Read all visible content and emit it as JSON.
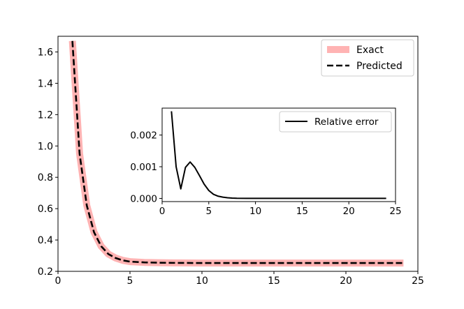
{
  "chart_data": [
    {
      "type": "line",
      "title": "",
      "xlabel": "",
      "ylabel": "",
      "xlim": [
        0,
        25
      ],
      "ylim": [
        0.2,
        1.7
      ],
      "xticks": [
        0,
        5,
        10,
        15,
        20,
        25
      ],
      "yticks": [
        0.2,
        0.4,
        0.6,
        0.8,
        1.0,
        1.2,
        1.4,
        1.6
      ],
      "xtick_labels": [
        "0",
        "5",
        "10",
        "15",
        "20",
        "25"
      ],
      "ytick_labels": [
        "0.2",
        "0.4",
        "0.6",
        "0.8",
        "1.0",
        "1.2",
        "1.4",
        "1.6"
      ],
      "grid": false,
      "legend_position": "top-right",
      "series": [
        {
          "name": "Exact",
          "style": "thick-solid",
          "color": "#ffb3b3",
          "x": [
            1.0,
            1.5,
            2.0,
            2.5,
            3.0,
            3.5,
            4.0,
            4.5,
            5.0,
            6.0,
            7.0,
            8.0,
            10.0,
            12.0,
            15.0,
            18.0,
            21.0,
            24.0
          ],
          "y": [
            1.67,
            0.95,
            0.62,
            0.45,
            0.36,
            0.31,
            0.285,
            0.27,
            0.262,
            0.257,
            0.255,
            0.254,
            0.253,
            0.253,
            0.253,
            0.253,
            0.253,
            0.253
          ]
        },
        {
          "name": "Predicted",
          "style": "dashed",
          "color": "#000000",
          "x": [
            1.0,
            1.5,
            2.0,
            2.5,
            3.0,
            3.5,
            4.0,
            4.5,
            5.0,
            6.0,
            7.0,
            8.0,
            10.0,
            12.0,
            15.0,
            18.0,
            21.0,
            24.0
          ],
          "y": [
            1.67,
            0.95,
            0.62,
            0.45,
            0.36,
            0.31,
            0.285,
            0.27,
            0.262,
            0.257,
            0.255,
            0.254,
            0.253,
            0.253,
            0.253,
            0.253,
            0.253,
            0.253
          ]
        }
      ]
    },
    {
      "type": "line",
      "title": "",
      "xlabel": "",
      "ylabel": "",
      "xlim": [
        0,
        25
      ],
      "ylim": [
        -0.0001,
        0.00285
      ],
      "xticks": [
        0,
        5,
        10,
        15,
        20,
        25
      ],
      "yticks": [
        0.0,
        0.001,
        0.002
      ],
      "xtick_labels": [
        "0",
        "5",
        "10",
        "15",
        "20",
        "25"
      ],
      "ytick_labels": [
        "0.000",
        "0.001",
        "0.002"
      ],
      "grid": false,
      "legend_position": "top-right",
      "series": [
        {
          "name": "Relative error",
          "style": "solid",
          "color": "#000000",
          "x": [
            1.0,
            1.5,
            2.0,
            2.5,
            3.0,
            3.5,
            4.0,
            4.5,
            5.0,
            5.5,
            6.0,
            6.5,
            7.0,
            7.5,
            8.0,
            9.0,
            10.0,
            12.0,
            15.0,
            18.0,
            21.0,
            24.0
          ],
          "y": [
            0.00275,
            0.001,
            0.0003,
            0.00098,
            0.00115,
            0.00098,
            0.00072,
            0.00045,
            0.00025,
            0.00013,
            7e-05,
            4e-05,
            2e-05,
            1e-05,
            5e-06,
            3e-06,
            3e-06,
            3e-06,
            3e-06,
            3e-06,
            3e-06,
            3e-06
          ]
        }
      ]
    }
  ]
}
